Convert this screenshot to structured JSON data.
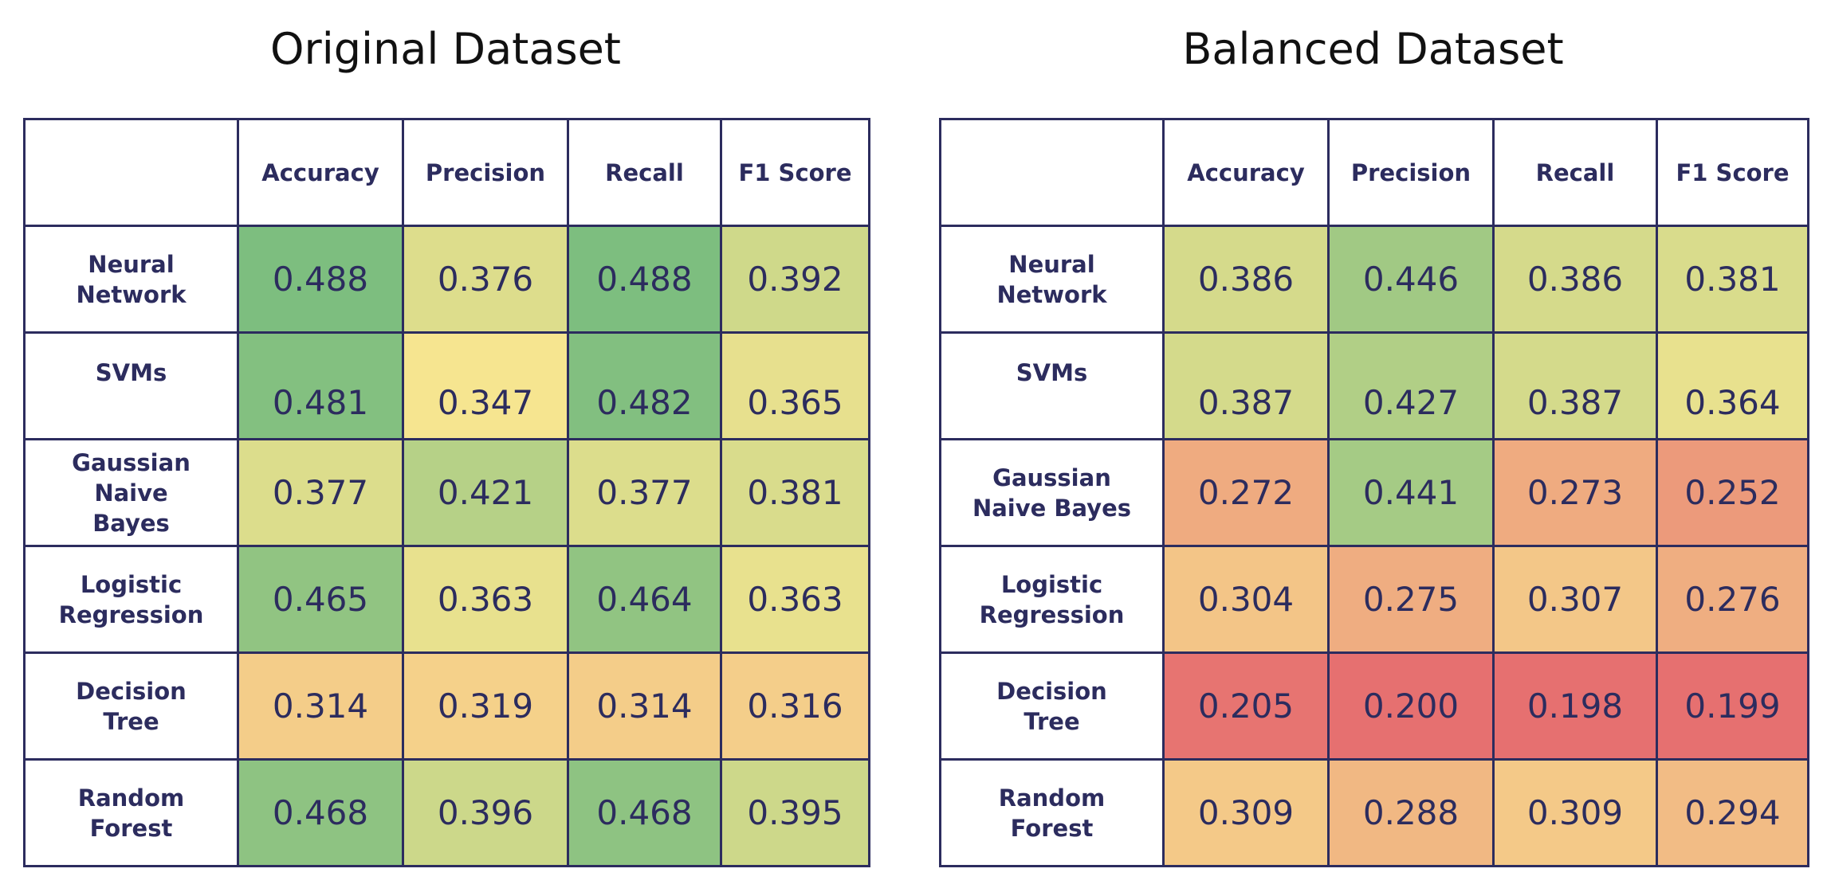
{
  "chart_data": [
    {
      "type": "heatmap",
      "title": "Original Dataset",
      "columns": [
        "Accuracy",
        "Precision",
        "Recall",
        "F1 Score"
      ],
      "rows": [
        "Neural Network",
        "SVMs",
        "Gaussian Naive Bayes",
        "Logistic Regression",
        "Decision Tree",
        "Random Forest"
      ],
      "values": [
        [
          0.488,
          0.376,
          0.488,
          0.392
        ],
        [
          0.481,
          0.347,
          0.482,
          0.365
        ],
        [
          0.377,
          0.421,
          0.377,
          0.381
        ],
        [
          0.465,
          0.363,
          0.464,
          0.363
        ],
        [
          0.314,
          0.319,
          0.314,
          0.316
        ],
        [
          0.468,
          0.396,
          0.468,
          0.395
        ]
      ]
    },
    {
      "type": "heatmap",
      "title": "Balanced Dataset",
      "columns": [
        "Accuracy",
        "Precision",
        "Recall",
        "F1 Score"
      ],
      "rows": [
        "Neural Network",
        "SVMs",
        "Gaussian Naive Bayes",
        "Logistic Regression",
        "Decision Tree",
        "Random Forest"
      ],
      "values": [
        [
          0.386,
          0.446,
          0.386,
          0.381
        ],
        [
          0.387,
          0.427,
          0.387,
          0.364
        ],
        [
          0.272,
          0.441,
          0.273,
          0.252
        ],
        [
          0.304,
          0.275,
          0.307,
          0.276
        ],
        [
          0.205,
          0.2,
          0.198,
          0.199
        ],
        [
          0.309,
          0.288,
          0.309,
          0.294
        ]
      ]
    }
  ],
  "colors": {
    "scale_low": "#e67070",
    "scale_mid": "#f8e690",
    "scale_high": "#7bbd7f",
    "border": "#2c2c5e",
    "text": "#2c2c5e"
  }
}
